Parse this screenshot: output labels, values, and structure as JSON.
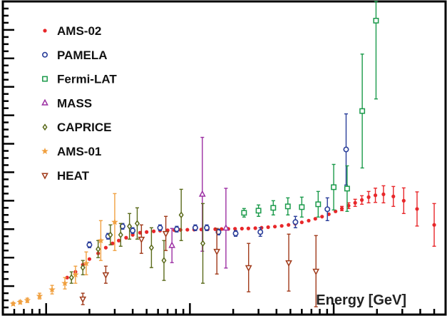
{
  "chart_data": {
    "type": "scatter",
    "xlabel": "Energy [GeV]",
    "ylabel": "",
    "x_scale": "log",
    "xlim": [
      0.5,
      600
    ],
    "ylim": [
      0,
      0.22
    ],
    "legend_position": "top-left",
    "series": [
      {
        "name": "AMS-02",
        "marker": "dot",
        "color": "#e8272a",
        "points": [
          [
            1.4,
            0.026
          ],
          [
            1.6,
            0.03
          ],
          [
            1.8,
            0.035
          ],
          [
            2.0,
            0.039
          ],
          [
            2.3,
            0.043
          ],
          [
            2.6,
            0.047
          ],
          [
            2.9,
            0.05
          ],
          [
            3.2,
            0.052
          ],
          [
            3.6,
            0.054
          ],
          [
            4.0,
            0.056
          ],
          [
            4.5,
            0.0575
          ],
          [
            5.0,
            0.058
          ],
          [
            5.6,
            0.0585
          ],
          [
            6.2,
            0.059
          ],
          [
            7.0,
            0.0592
          ],
          [
            7.8,
            0.0593
          ],
          [
            8.6,
            0.0595
          ],
          [
            9.6,
            0.0596
          ],
          [
            10.7,
            0.0597
          ],
          [
            12,
            0.0598
          ],
          [
            13.3,
            0.0599
          ],
          [
            15,
            0.06
          ],
          [
            16.6,
            0.0601
          ],
          [
            18.5,
            0.0602
          ],
          [
            20.6,
            0.0603
          ],
          [
            23,
            0.0604
          ],
          [
            25.5,
            0.0605
          ],
          [
            28.5,
            0.0607
          ],
          [
            31.5,
            0.061
          ],
          [
            35,
            0.0614
          ],
          [
            39,
            0.0618
          ],
          [
            43.5,
            0.0623
          ],
          [
            48.5,
            0.063
          ],
          [
            54,
            0.0638
          ],
          [
            60,
            0.0648
          ],
          [
            67,
            0.066
          ],
          [
            74.5,
            0.0673
          ],
          [
            83,
            0.0688
          ],
          [
            92.5,
            0.0705
          ],
          [
            103,
            0.0725
          ],
          [
            114,
            0.0745
          ],
          [
            127,
            0.0765
          ],
          [
            141,
            0.0785
          ],
          [
            157,
            0.0805
          ],
          [
            175,
            0.0825
          ],
          [
            195,
            0.0838
          ],
          [
            222,
            0.0845
          ],
          [
            260,
            0.083
          ],
          [
            307,
            0.08
          ],
          [
            380,
            0.0742
          ],
          [
            500,
            0.063
          ]
        ],
        "errors": [
          0,
          0,
          0,
          0,
          0,
          0,
          0,
          0,
          0,
          0,
          0,
          0,
          0,
          0,
          0,
          0,
          0,
          0,
          0,
          0,
          0,
          0,
          0,
          0,
          0,
          0,
          0,
          0,
          0,
          0,
          0,
          0,
          0,
          0,
          0,
          0,
          0,
          0,
          0,
          0,
          0.0015,
          0.002,
          0.0025,
          0.003,
          0.004,
          0.005,
          0.006,
          0.007,
          0.009,
          0.012,
          0.015
        ]
      },
      {
        "name": "PAMELA",
        "marker": "circle-open",
        "color": "#2a3e9a",
        "points": [
          [
            2.0,
            0.049
          ],
          [
            2.7,
            0.055
          ],
          [
            3.4,
            0.062
          ],
          [
            4.0,
            0.059
          ],
          [
            6.2,
            0.061
          ],
          [
            8.1,
            0.06
          ],
          [
            10.9,
            0.061
          ],
          [
            13.1,
            0.061
          ],
          [
            15.8,
            0.058
          ],
          [
            20.8,
            0.057
          ],
          [
            30.9,
            0.058
          ],
          [
            54.2,
            0.065
          ],
          [
            90.4,
            0.074
          ],
          [
            122,
            0.116
          ]
        ],
        "errors": [
          0.002,
          0.002,
          0.002,
          0.002,
          0.002,
          0.002,
          0.002,
          0.002,
          0.002,
          0.002,
          0.003,
          0.004,
          0.008,
          0.025
        ]
      },
      {
        "name": "Fermi-LAT",
        "marker": "square-open",
        "color": "#1a9a4a",
        "points": [
          [
            23.8,
            0.0715
          ],
          [
            30,
            0.073
          ],
          [
            38,
            0.075
          ],
          [
            48,
            0.076
          ],
          [
            60,
            0.0755
          ],
          [
            78,
            0.0775
          ],
          [
            100,
            0.0895
          ],
          [
            124,
            0.0885
          ],
          [
            158,
            0.143
          ],
          [
            197,
            0.2065
          ]
        ],
        "errors": [
          0.003,
          0.004,
          0.005,
          0.006,
          0.007,
          0.009,
          0.016,
          0.016,
          0.04,
          0.055
        ]
      },
      {
        "name": "MASS",
        "marker": "triangle-open",
        "color": "#9c2fa3",
        "points": [
          [
            7.5,
            0.0485
          ],
          [
            12.2,
            0.0845
          ],
          [
            17.8,
            0.0607
          ]
        ],
        "errors": [
          0.012,
          0.04,
          0.028
        ]
      },
      {
        "name": "CAPRICE",
        "marker": "diamond-open",
        "color": "#5a6a1a",
        "points": [
          [
            1.5,
            0.026
          ],
          [
            1.8,
            0.033
          ],
          [
            2.3,
            0.046
          ],
          [
            2.8,
            0.056
          ],
          [
            3.3,
            0.056
          ],
          [
            3.8,
            0.062
          ],
          [
            4.3,
            0.064
          ],
          [
            5.4,
            0.047
          ],
          [
            6.6,
            0.038
          ],
          [
            8.7,
            0.07
          ],
          [
            12.3,
            0.05
          ]
        ],
        "errors": [
          0.004,
          0.005,
          0.006,
          0.007,
          0.008,
          0.009,
          0.011,
          0.014,
          0.014,
          0.018,
          0.028
        ]
      },
      {
        "name": "AMS-01",
        "marker": "star",
        "color": "#f0a040",
        "points": [
          [
            0.59,
            0.0075
          ],
          [
            0.66,
            0.0087
          ],
          [
            0.74,
            0.01
          ],
          [
            0.9,
            0.013
          ],
          [
            1.1,
            0.0175
          ],
          [
            1.35,
            0.022
          ],
          [
            1.6,
            0.028
          ],
          [
            1.9,
            0.036
          ],
          [
            2.4,
            0.052
          ],
          [
            3.0,
            0.065
          ]
        ],
        "errors": [
          0.001,
          0.0012,
          0.0015,
          0.002,
          0.003,
          0.004,
          0.006,
          0.008,
          0.014,
          0.02
        ]
      },
      {
        "name": "HEAT",
        "marker": "triangle-down-open",
        "color": "#a03a1a",
        "points": [
          [
            1.8,
            0.011
          ],
          [
            2.6,
            0.028
          ],
          [
            4.6,
            0.053
          ],
          [
            6.8,
            0.057
          ],
          [
            15.4,
            0.0445
          ],
          [
            25.6,
            0.033
          ],
          [
            48.7,
            0.0365
          ],
          [
            75.3,
            0.0305
          ]
        ],
        "errors": [
          0.004,
          0.006,
          0.01,
          0.012,
          0.016,
          0.017,
          0.02,
          0.025
        ]
      }
    ]
  }
}
